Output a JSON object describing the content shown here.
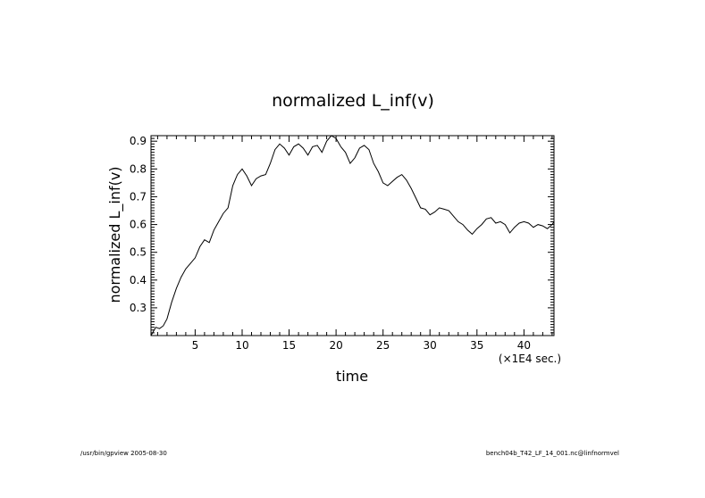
{
  "chart_data": {
    "type": "line",
    "title": "normalized L_inf(v)",
    "xlabel": "time",
    "ylabel": "normalized L_inf(v)",
    "x_multiplier_label": "(×1E4 sec.)",
    "xlim": [
      0.3,
      43.2
    ],
    "ylim": [
      0.2,
      0.92
    ],
    "xticks": [
      5,
      10,
      15,
      20,
      25,
      30,
      35,
      40
    ],
    "yticks": [
      0.3,
      0.4,
      0.5,
      0.6,
      0.7,
      0.8,
      0.9
    ],
    "xtick_labels": [
      "5",
      "10",
      "15",
      "20",
      "25",
      "30",
      "35",
      "40"
    ],
    "ytick_labels": [
      "0.3",
      "0.4",
      "0.5",
      "0.6",
      "0.7",
      "0.8",
      "0.9"
    ],
    "series": [
      {
        "color": "#000000",
        "x": [
          0.3,
          0.8,
          1.2,
          1.6,
          2.0,
          2.5,
          3.0,
          3.5,
          4.0,
          4.5,
          5.0,
          5.5,
          6.0,
          6.5,
          7.0,
          7.5,
          8.0,
          8.5,
          9.0,
          9.5,
          10.0,
          10.5,
          11.0,
          11.5,
          12.0,
          12.5,
          13.0,
          13.5,
          14.0,
          14.5,
          15.0,
          15.5,
          16.0,
          16.5,
          17.0,
          17.5,
          18.0,
          18.5,
          19.0,
          19.5,
          20.0,
          20.5,
          21.0,
          21.5,
          22.0,
          22.5,
          23.0,
          23.5,
          24.0,
          24.5,
          25.0,
          25.5,
          26.0,
          26.5,
          27.0,
          27.5,
          28.0,
          28.5,
          29.0,
          29.5,
          30.0,
          30.5,
          31.0,
          31.5,
          32.0,
          32.5,
          33.0,
          33.5,
          34.0,
          34.5,
          35.0,
          35.5,
          36.0,
          36.5,
          37.0,
          37.5,
          38.0,
          38.5,
          39.0,
          39.5,
          40.0,
          40.5,
          41.0,
          41.5,
          42.0,
          42.5,
          43.0,
          43.2
        ],
        "y": [
          0.2,
          0.23,
          0.225,
          0.235,
          0.26,
          0.32,
          0.37,
          0.41,
          0.44,
          0.46,
          0.48,
          0.52,
          0.545,
          0.535,
          0.58,
          0.61,
          0.64,
          0.66,
          0.74,
          0.78,
          0.8,
          0.775,
          0.74,
          0.765,
          0.775,
          0.78,
          0.82,
          0.87,
          0.89,
          0.875,
          0.85,
          0.88,
          0.89,
          0.875,
          0.85,
          0.88,
          0.885,
          0.86,
          0.9,
          0.92,
          0.91,
          0.88,
          0.86,
          0.82,
          0.84,
          0.875,
          0.885,
          0.87,
          0.82,
          0.79,
          0.75,
          0.74,
          0.755,
          0.77,
          0.78,
          0.76,
          0.73,
          0.695,
          0.66,
          0.655,
          0.635,
          0.645,
          0.66,
          0.655,
          0.65,
          0.63,
          0.61,
          0.6,
          0.58,
          0.565,
          0.585,
          0.6,
          0.62,
          0.625,
          0.605,
          0.61,
          0.6,
          0.57,
          0.59,
          0.605,
          0.61,
          0.605,
          0.59,
          0.6,
          0.595,
          0.585,
          0.6,
          0.61
        ]
      }
    ]
  },
  "footer": {
    "left": "/usr/bin/gpview   2005-08-30",
    "right": "bench04b_T42_LF_14_001.nc@linfnormvel"
  }
}
